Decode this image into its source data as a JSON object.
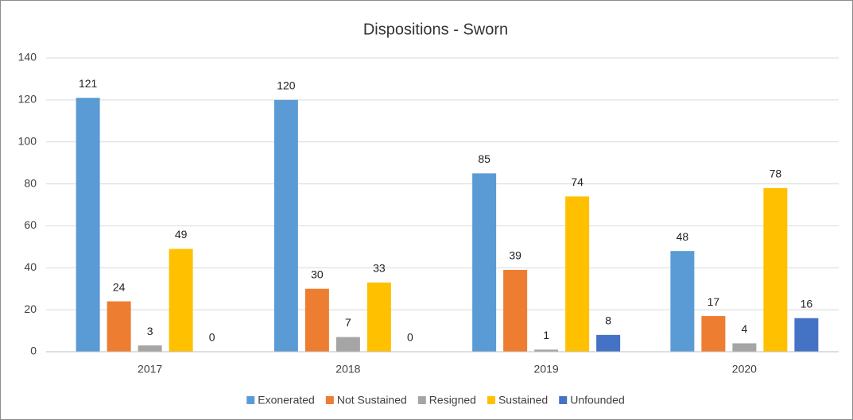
{
  "chart_data": {
    "type": "bar",
    "title": "Dispositions - Sworn",
    "categories": [
      "2017",
      "2018",
      "2019",
      "2020"
    ],
    "series": [
      {
        "name": "Exonerated",
        "color": "#5b9bd5",
        "values": [
          121,
          120,
          85,
          48
        ]
      },
      {
        "name": "Not Sustained",
        "color": "#ed7d31",
        "values": [
          24,
          30,
          39,
          17
        ]
      },
      {
        "name": "Resigned",
        "color": "#a5a5a5",
        "values": [
          3,
          7,
          1,
          4
        ]
      },
      {
        "name": "Sustained",
        "color": "#ffc000",
        "values": [
          49,
          33,
          74,
          78
        ]
      },
      {
        "name": "Unfounded",
        "color": "#4472c4",
        "values": [
          0,
          0,
          8,
          16
        ]
      }
    ],
    "ylim": [
      0,
      140
    ],
    "yticks": [
      0,
      20,
      40,
      60,
      80,
      100,
      120,
      140
    ],
    "grid": true,
    "legend": "bottom"
  }
}
